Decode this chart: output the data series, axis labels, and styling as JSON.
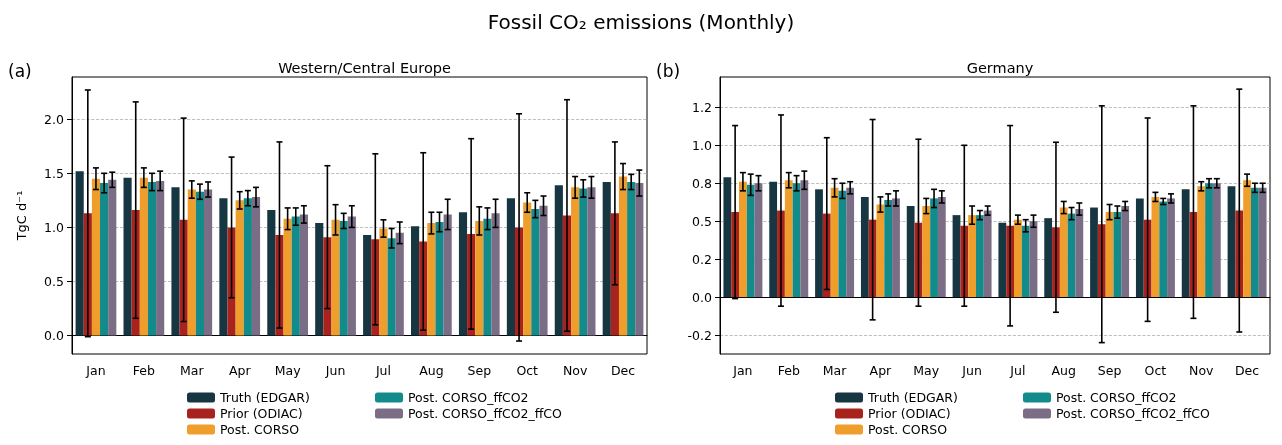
{
  "chart_data": [
    {
      "type": "bar",
      "title": "Western/Central Europe",
      "ylabel": "TgC d⁻¹",
      "annotations": [
        "Fossil CO₂ emissions (Monthly)",
        "(a)"
      ],
      "categories": [
        "Jan",
        "Feb",
        "Mar",
        "Apr",
        "May",
        "Jun",
        "Jul",
        "Aug",
        "Sep",
        "Oct",
        "Nov",
        "Dec"
      ],
      "series": [
        {
          "name": "Truth (EDGAR)",
          "color": "#163642",
          "values": [
            1.52,
            1.46,
            1.37,
            1.27,
            1.16,
            1.04,
            0.93,
            1.01,
            1.14,
            1.27,
            1.39,
            1.42
          ]
        },
        {
          "name": "Prior (ODIAC)",
          "color": "#a8231e",
          "values": [
            1.13,
            1.16,
            1.07,
            1.0,
            0.93,
            0.91,
            0.89,
            0.87,
            0.94,
            1.0,
            1.11,
            1.13
          ],
          "errors": [
            1.14,
            1.0,
            0.94,
            0.65,
            0.86,
            0.66,
            0.79,
            0.82,
            0.88,
            1.05,
            1.07,
            0.66
          ]
        },
        {
          "name": "Post. CORSO",
          "color": "#ef9e2b",
          "values": [
            1.45,
            1.46,
            1.35,
            1.25,
            1.08,
            1.07,
            0.99,
            1.04,
            1.06,
            1.23,
            1.37,
            1.47
          ],
          "errors": [
            0.1,
            0.09,
            0.08,
            0.08,
            0.1,
            0.14,
            0.08,
            0.1,
            0.13,
            0.09,
            0.1,
            0.12
          ]
        },
        {
          "name": "Post. CORSO_ffCO2",
          "color": "#138b8a",
          "values": [
            1.41,
            1.42,
            1.33,
            1.27,
            1.1,
            1.06,
            0.9,
            1.05,
            1.08,
            1.17,
            1.36,
            1.42
          ],
          "errors": [
            0.09,
            0.08,
            0.07,
            0.07,
            0.08,
            0.07,
            0.09,
            0.09,
            0.1,
            0.08,
            0.08,
            0.07
          ]
        },
        {
          "name": "Post. CORSO_ffCO2_ffCO",
          "color": "#7b6d85",
          "values": [
            1.44,
            1.43,
            1.35,
            1.28,
            1.12,
            1.1,
            0.95,
            1.12,
            1.13,
            1.2,
            1.37,
            1.41
          ],
          "errors": [
            0.07,
            0.09,
            0.07,
            0.09,
            0.08,
            0.1,
            0.1,
            0.14,
            0.13,
            0.09,
            0.1,
            0.12
          ]
        }
      ],
      "ylim": [
        -0.17,
        2.39
      ],
      "yticks": [
        {
          "value": 0,
          "label": "0.0"
        },
        {
          "value": 0.5,
          "label": "0.5"
        },
        {
          "value": 1,
          "label": "1.0"
        },
        {
          "value": 1.5,
          "label": "1.5"
        },
        {
          "value": 2,
          "label": "2.0"
        }
      ],
      "grid": "y",
      "legend": "bottom"
    },
    {
      "type": "bar",
      "title": "Germany",
      "annotations": [
        "(b)"
      ],
      "categories": [
        "Jan",
        "Feb",
        "Mar",
        "Apr",
        "May",
        "Jun",
        "Jul",
        "Aug",
        "Sep",
        "Oct",
        "Nov",
        "Dec"
      ],
      "series": [
        {
          "name": "Truth (EDGAR)",
          "color": "#163642",
          "values": [
            0.79,
            0.76,
            0.71,
            0.66,
            0.6,
            0.54,
            0.49,
            0.52,
            0.59,
            0.65,
            0.71,
            0.73
          ]
        },
        {
          "name": "Prior (ODIAC)",
          "color": "#a8231e",
          "values": [
            0.56,
            0.57,
            0.55,
            0.51,
            0.49,
            0.47,
            0.47,
            0.46,
            0.48,
            0.51,
            0.56,
            0.57
          ],
          "errors": [
            0.57,
            0.63,
            0.5,
            0.66,
            0.55,
            0.53,
            0.66,
            0.56,
            0.78,
            0.67,
            0.7,
            0.8
          ]
        },
        {
          "name": "Post. CORSO",
          "color": "#ef9e2b",
          "values": [
            0.76,
            0.77,
            0.72,
            0.61,
            0.6,
            0.54,
            0.51,
            0.59,
            0.56,
            0.66,
            0.73,
            0.77
          ],
          "errors": [
            0.06,
            0.05,
            0.06,
            0.05,
            0.05,
            0.06,
            0.03,
            0.04,
            0.05,
            0.03,
            0.03,
            0.04
          ]
        },
        {
          "name": "Post. CORSO_ffCO2",
          "color": "#138b8a",
          "values": [
            0.74,
            0.75,
            0.7,
            0.64,
            0.65,
            0.54,
            0.47,
            0.55,
            0.56,
            0.63,
            0.75,
            0.72
          ],
          "errors": [
            0.07,
            0.05,
            0.05,
            0.04,
            0.06,
            0.03,
            0.04,
            0.04,
            0.04,
            0.02,
            0.03,
            0.03
          ]
        },
        {
          "name": "Post. CORSO_ffCO2_ffCO",
          "color": "#7b6d85",
          "values": [
            0.75,
            0.77,
            0.72,
            0.65,
            0.66,
            0.57,
            0.5,
            0.58,
            0.6,
            0.65,
            0.75,
            0.72
          ],
          "errors": [
            0.05,
            0.06,
            0.04,
            0.05,
            0.04,
            0.03,
            0.04,
            0.04,
            0.03,
            0.03,
            0.03,
            0.03
          ]
        }
      ],
      "ylim": [
        -0.375,
        1.45
      ],
      "yticks": [
        {
          "value": -0.25,
          "label": "-0.2"
        },
        {
          "value": 0,
          "label": "0.0"
        },
        {
          "value": 0.25,
          "label": "0.2"
        },
        {
          "value": 0.5,
          "label": "0.5"
        },
        {
          "value": 0.75,
          "label": "0.8"
        },
        {
          "value": 1,
          "label": "1.0"
        },
        {
          "value": 1.25,
          "label": "1.2"
        }
      ],
      "grid": "y",
      "legend": "bottom"
    }
  ]
}
